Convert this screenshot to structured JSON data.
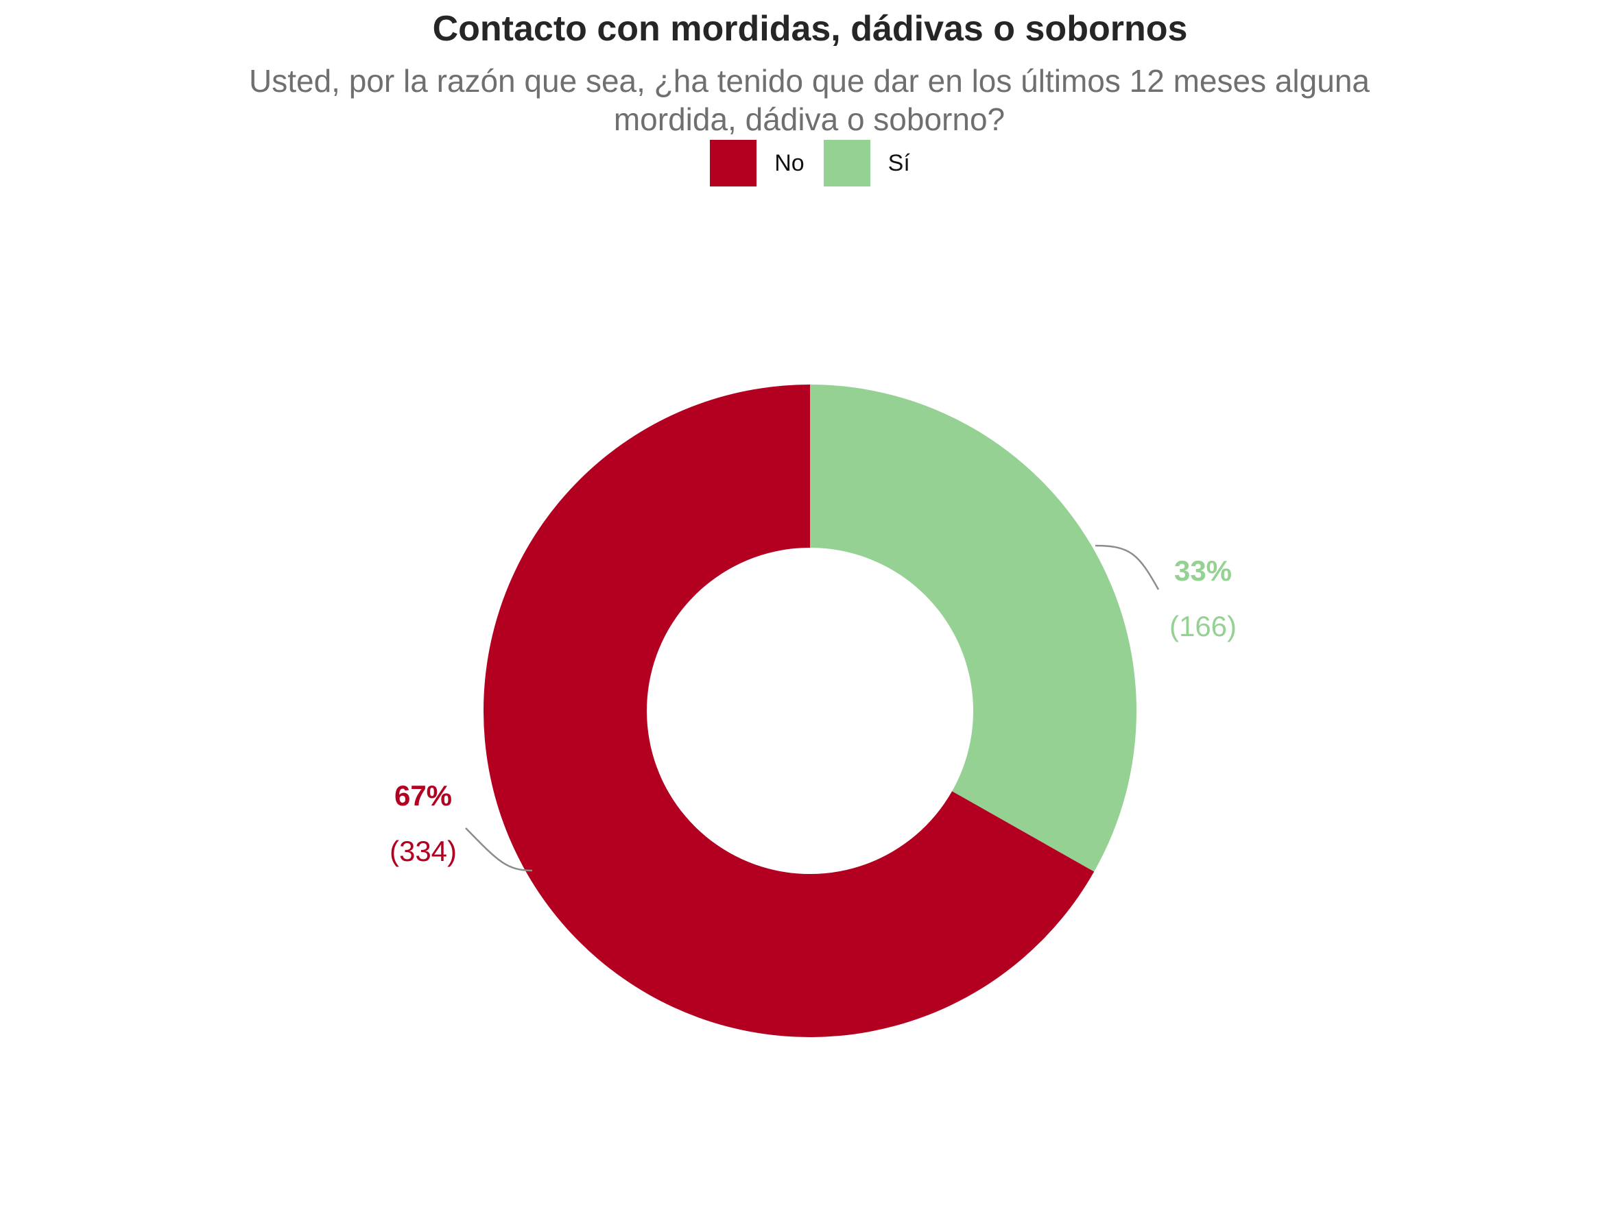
{
  "chart_data": {
    "type": "pie",
    "title": "Contacto con mordidas, dádivas o sobornos",
    "subtitle": "Usted, por la razón que sea, ¿ha tenido que dar en los últimos 12 meses alguna mordida, dádiva o soborno?",
    "legend_position": "top",
    "hole": true,
    "categories": [
      "No",
      "Sí"
    ],
    "values": [
      334,
      166
    ],
    "percent_labels": [
      "67%",
      "33%"
    ],
    "count_labels": [
      "(334)",
      "(166)"
    ],
    "colors": [
      "#b30021",
      "#94d192"
    ]
  }
}
